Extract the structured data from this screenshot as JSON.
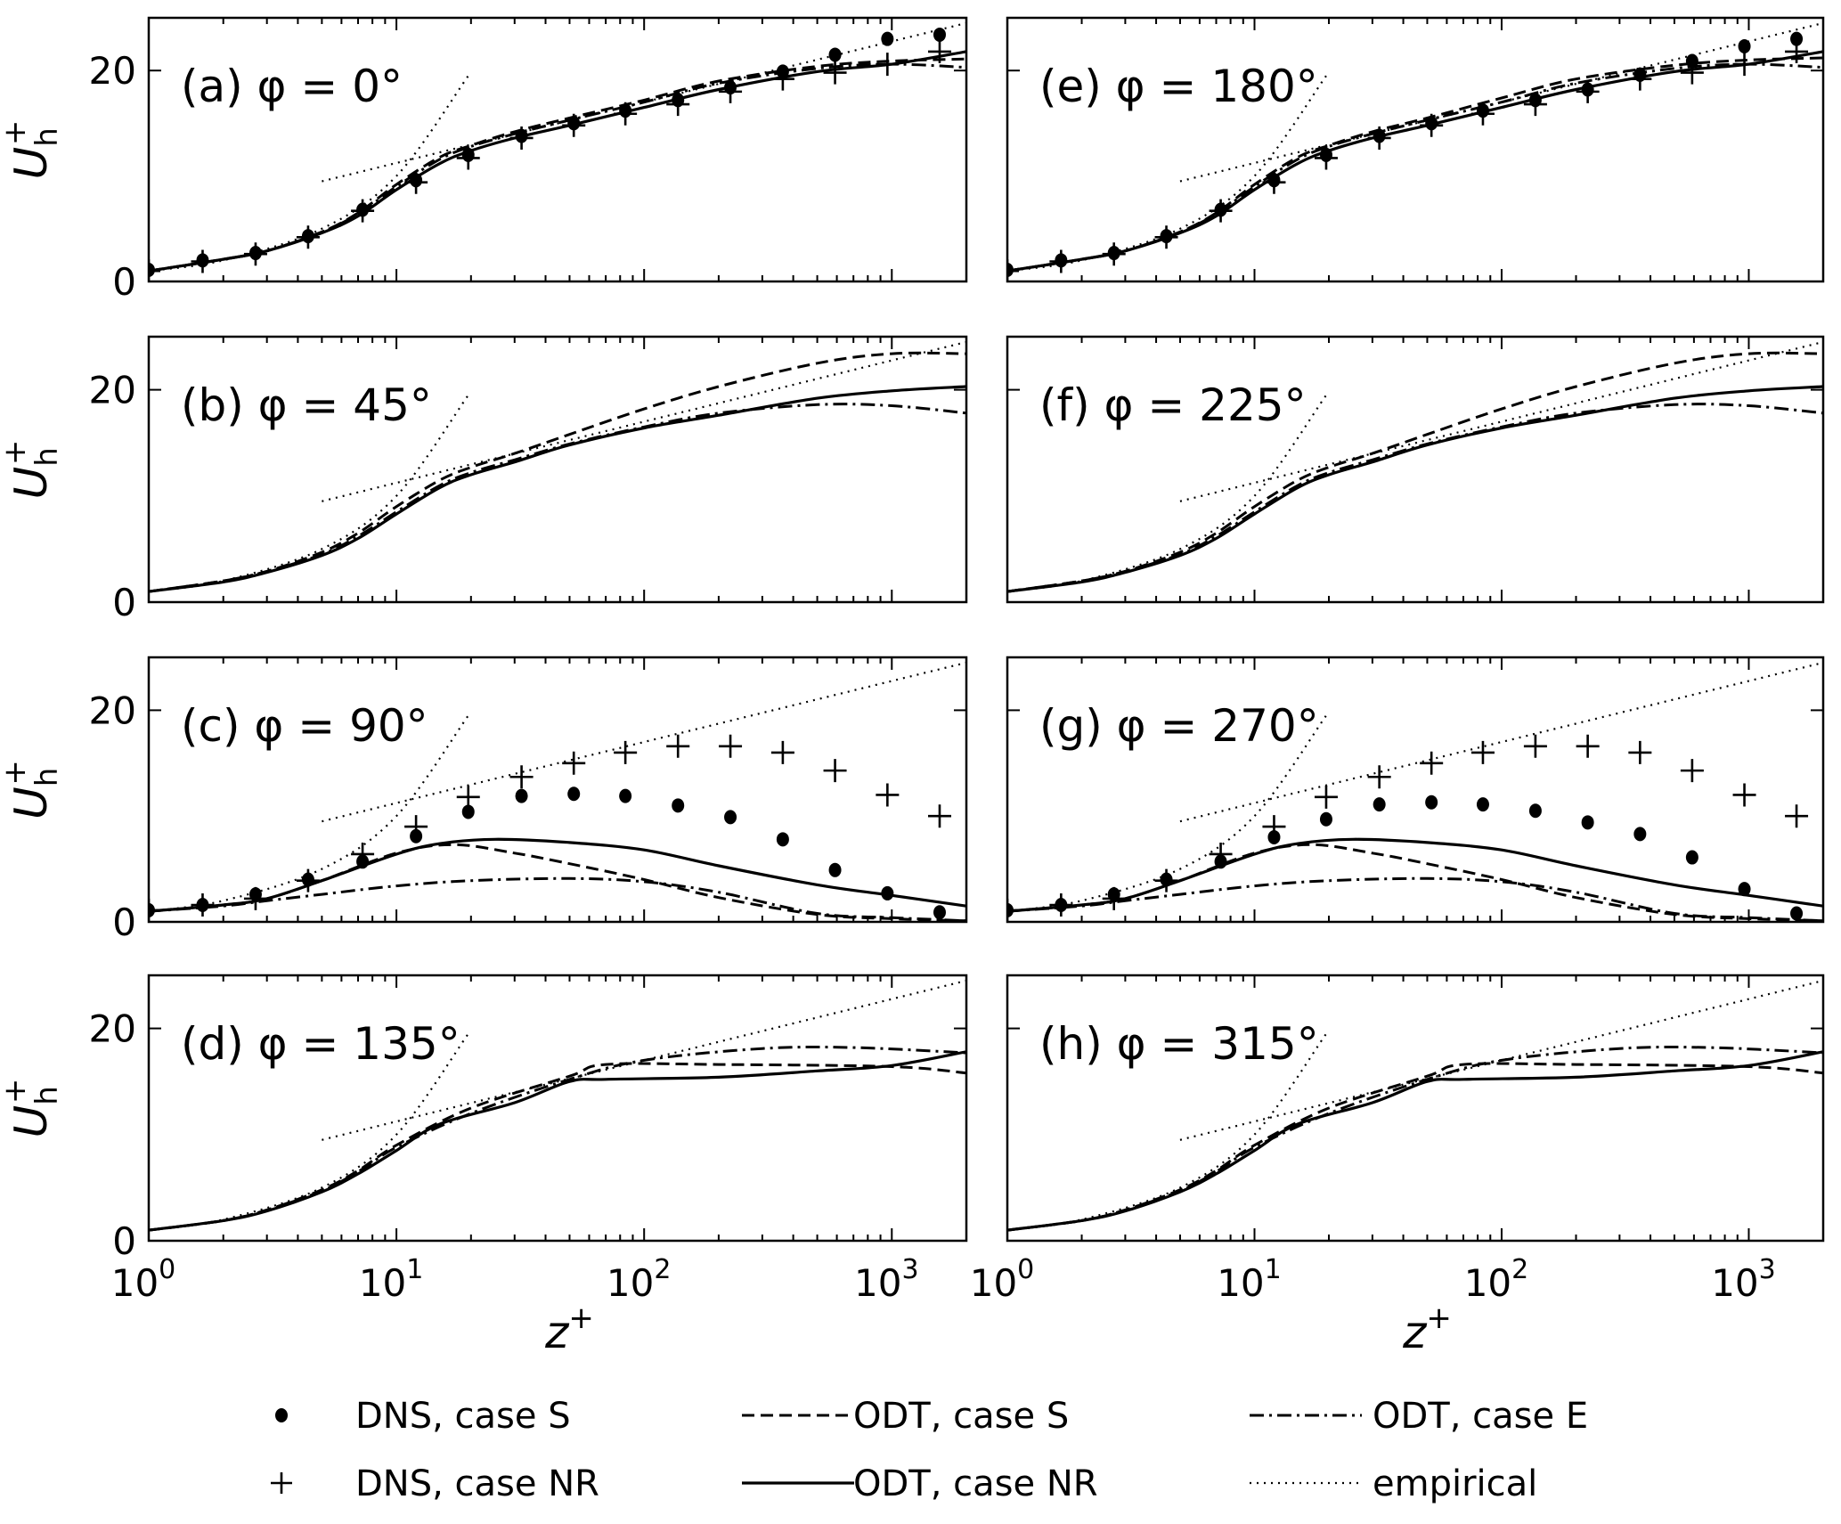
{
  "chart_data": {
    "type": "line",
    "xscale": "log",
    "xlim": [
      1,
      2000
    ],
    "ylim": [
      0,
      25
    ],
    "grid": false,
    "xticks": [
      {
        "value": 1,
        "base": "10",
        "exp": "0"
      },
      {
        "value": 10,
        "base": "10",
        "exp": "1"
      },
      {
        "value": 100,
        "base": "10",
        "exp": "2"
      },
      {
        "value": 1000,
        "base": "10",
        "exp": "3"
      }
    ],
    "yticks": [
      {
        "value": 0,
        "label": "0"
      },
      {
        "value": 20,
        "label": "20"
      }
    ],
    "xlabel": {
      "base": "z",
      "sup": "+"
    },
    "ylabel": {
      "base": "U",
      "sub": "h",
      "sup": "+"
    },
    "legend_placement": "bottom",
    "legend": [
      {
        "key": "dns_S",
        "label": "DNS, case S",
        "style": "dot"
      },
      {
        "key": "odt_S",
        "label": "ODT, case S",
        "style": "dashed"
      },
      {
        "key": "odt_E",
        "label": "ODT, case E",
        "style": "dashdot"
      },
      {
        "key": "dns_NR",
        "label": "DNS, case NR",
        "style": "plus"
      },
      {
        "key": "odt_NR",
        "label": "ODT, case NR",
        "style": "solid"
      },
      {
        "key": "empirical",
        "label": "empirical",
        "style": "dotted"
      }
    ],
    "dns_x": [
      1,
      1.65,
      2.7,
      4.4,
      7.3,
      12,
      19.5,
      32,
      52,
      84,
      137,
      223,
      363,
      590,
      960,
      1560
    ],
    "empirical": {
      "viscous": {
        "x": [
          1,
          2,
          5,
          10,
          19.5
        ],
        "y": [
          1,
          2,
          5,
          10,
          19.5
        ]
      },
      "log_law": {
        "x": [
          5,
          2000
        ],
        "y": [
          9.5,
          24.5
        ]
      }
    },
    "panels": [
      {
        "title": "(a) φ = 0°",
        "dns_S": [
          1.1,
          2.0,
          2.7,
          4.3,
          6.8,
          9.6,
          12.0,
          13.8,
          15.0,
          16.2,
          17.2,
          18.4,
          19.9,
          21.5,
          23.0,
          23.4
        ],
        "dns_NR": [
          1.0,
          1.9,
          2.6,
          4.2,
          6.7,
          9.4,
          11.7,
          13.6,
          14.8,
          15.9,
          16.8,
          18.0,
          19.2,
          19.8,
          20.6,
          21.8
        ],
        "odt_NR": {
          "x": [
            1,
            2,
            3,
            5,
            7,
            10,
            15,
            20,
            30,
            50,
            100,
            200,
            500,
            1000,
            2000
          ],
          "y": [
            1.0,
            2.1,
            2.9,
            4.6,
            6.2,
            8.7,
            11.2,
            12.4,
            13.6,
            14.8,
            16.5,
            18.2,
            19.9,
            20.6,
            21.8
          ]
        },
        "odt_S": {
          "x": [
            1,
            2,
            3,
            5,
            7,
            10,
            15,
            20,
            30,
            50,
            100,
            200,
            500,
            1000,
            2000
          ],
          "y": [
            1.0,
            2.1,
            2.9,
            4.7,
            6.5,
            9.2,
            11.8,
            12.9,
            14.2,
            15.5,
            17.2,
            19.0,
            20.4,
            20.9,
            21.1
          ]
        },
        "odt_E": {
          "x": [
            1,
            2,
            3,
            5,
            7,
            10,
            15,
            20,
            30,
            50,
            100,
            200,
            500,
            1000,
            2000
          ],
          "y": [
            1.0,
            2.1,
            2.9,
            4.7,
            6.4,
            9.0,
            11.6,
            12.8,
            14.0,
            15.3,
            17.0,
            18.8,
            20.2,
            20.6,
            20.3
          ]
        }
      },
      {
        "title": "(b) φ = 45°",
        "odt_NR": {
          "x": [
            1,
            2,
            3,
            5,
            7,
            10,
            15,
            20,
            30,
            50,
            100,
            200,
            500,
            1000,
            2000
          ],
          "y": [
            1.0,
            1.9,
            2.8,
            4.4,
            6.0,
            8.3,
            10.8,
            12.0,
            13.2,
            14.8,
            16.4,
            17.6,
            19.2,
            19.9,
            20.3
          ]
        },
        "odt_S": {
          "x": [
            1,
            2,
            3,
            5,
            7,
            10,
            15,
            20,
            30,
            50,
            100,
            200,
            500,
            1000,
            2000
          ],
          "y": [
            1.0,
            2.0,
            2.9,
            4.7,
            6.5,
            9.0,
            11.5,
            12.7,
            14.0,
            15.8,
            18.2,
            20.3,
            22.5,
            23.4,
            23.4
          ]
        },
        "odt_E": {
          "x": [
            1,
            2,
            3,
            5,
            7,
            10,
            15,
            20,
            30,
            50,
            100,
            200,
            500,
            1000,
            2000
          ],
          "y": [
            1.0,
            2.0,
            2.9,
            4.5,
            6.2,
            8.5,
            11.0,
            12.2,
            13.4,
            14.9,
            16.5,
            17.8,
            18.6,
            18.5,
            17.8
          ]
        }
      },
      {
        "title": "(c) φ = 90°",
        "dns_S": [
          1.1,
          1.6,
          2.6,
          4.0,
          5.7,
          8.1,
          10.4,
          11.9,
          12.1,
          11.9,
          11.0,
          9.9,
          7.8,
          4.9,
          2.7,
          0.9
        ],
        "dns_NR": [
          1.1,
          1.6,
          2.2,
          3.9,
          6.4,
          9.0,
          11.8,
          13.7,
          15.0,
          16.0,
          16.6,
          16.6,
          16.0,
          14.3,
          12.0,
          10.0
        ],
        "odt_NR": {
          "x": [
            1,
            2,
            3,
            5,
            10,
            15,
            25,
            50,
            100,
            200,
            500,
            1000,
            2000
          ],
          "y": [
            1.0,
            1.6,
            2.2,
            3.9,
            6.4,
            7.4,
            7.8,
            7.5,
            6.8,
            5.3,
            3.5,
            2.5,
            1.5
          ]
        },
        "odt_S": {
          "x": [
            1,
            2,
            3,
            5,
            10,
            17,
            30,
            50,
            100,
            200,
            500,
            1000,
            2000
          ],
          "y": [
            1.0,
            1.6,
            2.2,
            3.9,
            6.5,
            7.3,
            6.5,
            5.5,
            4.0,
            2.3,
            0.7,
            0.3,
            0.1
          ]
        },
        "odt_E": {
          "x": [
            1,
            2,
            3,
            5,
            10,
            20,
            50,
            100,
            200,
            500,
            1000,
            2000
          ],
          "y": [
            1.0,
            1.5,
            2.0,
            2.6,
            3.4,
            3.9,
            4.1,
            3.8,
            2.8,
            0.8,
            0.4,
            0.1
          ]
        }
      },
      {
        "title": "(d) φ = 135°",
        "odt_NR": {
          "x": [
            1,
            2,
            3,
            5,
            7,
            10,
            15,
            30,
            50,
            70,
            200,
            500,
            1000,
            2000
          ],
          "y": [
            1.0,
            1.9,
            2.8,
            4.6,
            6.3,
            8.5,
            11.0,
            13.0,
            15.0,
            15.2,
            15.4,
            16.0,
            16.5,
            17.8
          ]
        },
        "odt_S": {
          "x": [
            1,
            2,
            3,
            5,
            7,
            10,
            20,
            50,
            70,
            200,
            1000,
            2000
          ],
          "y": [
            1.0,
            1.9,
            2.9,
            4.8,
            6.6,
            9.0,
            12.5,
            15.5,
            16.6,
            16.6,
            16.4,
            15.8
          ]
        },
        "odt_E": {
          "x": [
            1,
            2,
            3,
            5,
            7,
            10,
            20,
            50,
            100,
            300,
            700,
            2000
          ],
          "y": [
            1.0,
            1.9,
            2.9,
            4.7,
            6.5,
            8.8,
            12.0,
            15.2,
            17.0,
            18.1,
            18.2,
            17.7
          ]
        }
      },
      {
        "title": "(e) φ = 180°",
        "dns_S": [
          1.1,
          2.0,
          2.7,
          4.3,
          6.8,
          9.6,
          12.0,
          13.8,
          15.0,
          16.2,
          17.2,
          18.2,
          19.6,
          20.9,
          22.3,
          23.0
        ],
        "dns_NR": [
          1.0,
          1.9,
          2.6,
          4.2,
          6.7,
          9.4,
          11.7,
          13.6,
          14.8,
          15.9,
          16.8,
          18.0,
          19.2,
          19.8,
          20.6,
          21.8
        ],
        "odt_NR": {
          "x": [
            1,
            2,
            3,
            5,
            7,
            10,
            15,
            20,
            30,
            50,
            100,
            200,
            500,
            1000,
            2000
          ],
          "y": [
            1.0,
            2.1,
            2.9,
            4.6,
            6.2,
            8.7,
            11.2,
            12.4,
            13.6,
            14.8,
            16.5,
            18.2,
            19.9,
            20.6,
            21.8
          ]
        },
        "odt_S": {
          "x": [
            1,
            2,
            3,
            5,
            7,
            10,
            15,
            20,
            30,
            50,
            100,
            200,
            500,
            1000,
            2000
          ],
          "y": [
            1.0,
            2.1,
            2.9,
            4.7,
            6.5,
            9.2,
            11.8,
            12.9,
            14.2,
            15.5,
            17.4,
            19.2,
            20.5,
            21.0,
            21.2
          ]
        },
        "odt_E": {
          "x": [
            1,
            2,
            3,
            5,
            7,
            10,
            15,
            20,
            30,
            50,
            100,
            200,
            500,
            1000,
            2000
          ],
          "y": [
            1.0,
            2.1,
            2.9,
            4.7,
            6.4,
            9.0,
            11.6,
            12.8,
            14.0,
            15.3,
            17.0,
            18.8,
            20.2,
            20.6,
            20.3
          ]
        }
      },
      {
        "title": "(f) φ = 225°",
        "odt_NR": {
          "x": [
            1,
            2,
            3,
            5,
            7,
            10,
            15,
            20,
            30,
            50,
            100,
            200,
            500,
            1000,
            2000
          ],
          "y": [
            1.0,
            1.9,
            2.8,
            4.4,
            6.0,
            8.3,
            10.8,
            12.0,
            13.2,
            14.8,
            16.4,
            17.6,
            19.2,
            19.9,
            20.3
          ]
        },
        "odt_S": {
          "x": [
            1,
            2,
            3,
            5,
            7,
            10,
            15,
            20,
            30,
            50,
            100,
            200,
            500,
            1000,
            2000
          ],
          "y": [
            1.0,
            2.0,
            2.9,
            4.7,
            6.5,
            9.0,
            11.5,
            12.7,
            14.0,
            15.8,
            18.2,
            20.3,
            22.5,
            23.4,
            23.4
          ]
        },
        "odt_E": {
          "x": [
            1,
            2,
            3,
            5,
            7,
            10,
            15,
            20,
            30,
            50,
            100,
            200,
            500,
            1000,
            2000
          ],
          "y": [
            1.0,
            2.0,
            2.9,
            4.5,
            6.2,
            8.5,
            11.0,
            12.2,
            13.4,
            14.9,
            16.5,
            17.8,
            18.6,
            18.5,
            17.8
          ]
        }
      },
      {
        "title": "(g) φ = 270°",
        "dns_S": [
          1.1,
          1.6,
          2.6,
          4.0,
          5.7,
          8.0,
          9.7,
          11.1,
          11.3,
          11.1,
          10.5,
          9.4,
          8.3,
          6.1,
          3.1,
          0.8
        ],
        "dns_NR": [
          1.1,
          1.6,
          2.2,
          3.9,
          6.4,
          9.0,
          11.8,
          13.7,
          15.0,
          16.0,
          16.6,
          16.6,
          16.0,
          14.3,
          12.0,
          10.0
        ],
        "odt_NR": {
          "x": [
            1,
            2,
            3,
            5,
            10,
            15,
            25,
            50,
            100,
            200,
            500,
            1000,
            2000
          ],
          "y": [
            1.0,
            1.6,
            2.2,
            3.9,
            6.4,
            7.4,
            7.8,
            7.5,
            6.8,
            5.3,
            3.5,
            2.5,
            1.5
          ]
        },
        "odt_S": {
          "x": [
            1,
            2,
            3,
            5,
            10,
            17,
            30,
            50,
            100,
            200,
            500,
            1000,
            2000
          ],
          "y": [
            1.0,
            1.6,
            2.2,
            3.9,
            6.5,
            7.3,
            6.5,
            5.5,
            4.0,
            2.3,
            0.7,
            0.3,
            0.1
          ]
        },
        "odt_E": {
          "x": [
            1,
            2,
            3,
            5,
            10,
            20,
            50,
            100,
            200,
            500,
            1000,
            2000
          ],
          "y": [
            1.0,
            1.5,
            2.0,
            2.6,
            3.4,
            3.9,
            4.1,
            3.8,
            2.8,
            0.8,
            0.4,
            0.1
          ]
        }
      },
      {
        "title": "(h) φ = 315°",
        "odt_NR": {
          "x": [
            1,
            2,
            3,
            5,
            7,
            10,
            15,
            30,
            50,
            70,
            200,
            500,
            1000,
            2000
          ],
          "y": [
            1.0,
            1.9,
            2.8,
            4.6,
            6.3,
            8.5,
            11.0,
            13.0,
            15.0,
            15.2,
            15.4,
            16.0,
            16.5,
            17.8
          ]
        },
        "odt_S": {
          "x": [
            1,
            2,
            3,
            5,
            7,
            10,
            20,
            50,
            70,
            200,
            1000,
            2000
          ],
          "y": [
            1.0,
            1.9,
            2.9,
            4.8,
            6.6,
            9.0,
            12.5,
            15.5,
            16.6,
            16.6,
            16.4,
            15.8
          ]
        },
        "odt_E": {
          "x": [
            1,
            2,
            3,
            5,
            7,
            10,
            20,
            50,
            100,
            300,
            700,
            2000
          ],
          "y": [
            1.0,
            1.9,
            2.9,
            4.7,
            6.5,
            8.8,
            12.0,
            15.2,
            17.0,
            18.1,
            18.2,
            17.7
          ]
        }
      }
    ]
  }
}
